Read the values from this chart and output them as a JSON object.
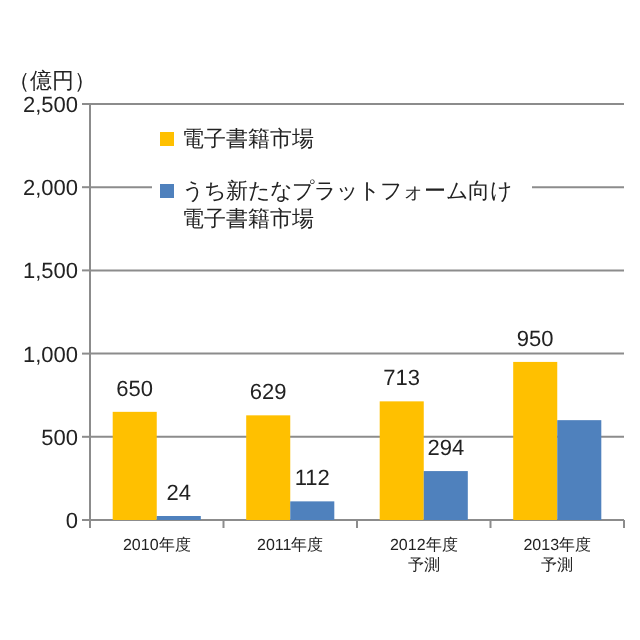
{
  "chart_data": {
    "type": "bar",
    "ylabel": "（億円）",
    "categories": [
      "2010年度",
      "2011年度",
      "2012年度予測",
      "2013年度予測"
    ],
    "series": [
      {
        "name": "電子書籍市場",
        "color": "#ffc000",
        "values": [
          650,
          629,
          713,
          950
        ],
        "value_labels": [
          "650",
          "629",
          "713",
          "950"
        ]
      },
      {
        "name": "うち新たなプラットフォーム向け電子書籍市場",
        "color": "#4f81bd",
        "values": [
          24,
          112,
          294,
          600
        ],
        "value_labels": [
          "24",
          "112",
          "294",
          null
        ]
      }
    ],
    "ylim": [
      0,
      2500
    ],
    "yticks": [
      {
        "value": 0,
        "label": "0"
      },
      {
        "value": 500,
        "label": "500"
      },
      {
        "value": 1000,
        "label": "1,000"
      },
      {
        "value": 1500,
        "label": "1,500"
      },
      {
        "value": 2000,
        "label": "2,000"
      },
      {
        "value": 2500,
        "label": "2,500"
      }
    ],
    "grid": "y",
    "legend": "top left"
  }
}
